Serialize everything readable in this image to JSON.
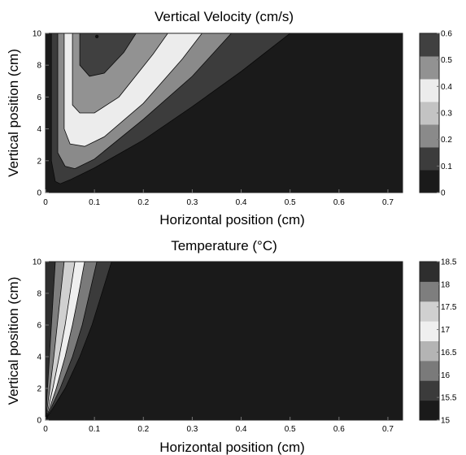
{
  "chart_data": [
    {
      "type": "heatmap",
      "title": "Vertical Velocity (cm/s)",
      "xlabel": "Horizontal position (cm)",
      "ylabel": "Vertical position (cm)",
      "xlim": [
        0,
        0.73
      ],
      "ylim": [
        0,
        10
      ],
      "xticks": [
        "0",
        "0.1",
        "0.2",
        "0.3",
        "0.4",
        "0.5",
        "0.6",
        "0.7"
      ],
      "yticks": [
        "0",
        "2",
        "4",
        "6",
        "8",
        "10"
      ],
      "colorbar": {
        "min": 0,
        "max": 0.6,
        "ticks": [
          "0",
          "0.1",
          "0.2",
          "0.3",
          "0.4",
          "0.5",
          "0.6"
        ]
      },
      "colormap": [
        "#1a1a1a",
        "#3c3c3c",
        "#8a8a8a",
        "#c3c3c3",
        "#ececec",
        "#929292",
        "#404040"
      ],
      "contour_levels": [
        0.1,
        0.2,
        0.3,
        0.4,
        0.5
      ],
      "contours": [
        {
          "level": 0.1,
          "value": 0.15,
          "points": [
            [
              0.012,
              10
            ],
            [
              0.012,
              2
            ],
            [
              0.02,
              0.7
            ],
            [
              0.03,
              0.55
            ],
            [
              0.05,
              0.8
            ],
            [
              0.1,
              1.55
            ],
            [
              0.2,
              3.3
            ],
            [
              0.3,
              5.4
            ],
            [
              0.4,
              7.6
            ],
            [
              0.45,
              8.8
            ],
            [
              0.5,
              10
            ]
          ]
        },
        {
          "level": 0.2,
          "value": 0.25,
          "points": [
            [
              0.025,
              10
            ],
            [
              0.025,
              2.5
            ],
            [
              0.04,
              1.65
            ],
            [
              0.06,
              1.5
            ],
            [
              0.1,
              2.1
            ],
            [
              0.2,
              4.6
            ],
            [
              0.3,
              7.3
            ],
            [
              0.38,
              10
            ]
          ]
        },
        {
          "level": 0.3,
          "value": 0.35,
          "points": [
            [
              0.038,
              10
            ],
            [
              0.038,
              4
            ],
            [
              0.05,
              3.05
            ],
            [
              0.08,
              2.9
            ],
            [
              0.12,
              3.5
            ],
            [
              0.2,
              5.6
            ],
            [
              0.28,
              8.4
            ],
            [
              0.32,
              10
            ]
          ]
        },
        {
          "level": 0.4,
          "value": 0.45,
          "points": [
            [
              0.055,
              10
            ],
            [
              0.055,
              5.5
            ],
            [
              0.07,
              5.0
            ],
            [
              0.1,
              5.0
            ],
            [
              0.15,
              6.0
            ],
            [
              0.22,
              8.7
            ],
            [
              0.25,
              10
            ]
          ]
        },
        {
          "level": 0.5,
          "value": 0.55,
          "points": [
            [
              0.07,
              10
            ],
            [
              0.07,
              8.0
            ],
            [
              0.09,
              7.3
            ],
            [
              0.12,
              7.5
            ],
            [
              0.16,
              8.8
            ],
            [
              0.185,
              10
            ]
          ]
        }
      ],
      "peak_marker": {
        "x": 0.105,
        "y": 9.8
      }
    },
    {
      "type": "heatmap",
      "title": "Temperature (°C)",
      "xlabel": "Horizontal position (cm)",
      "ylabel": "Vertical position (cm)",
      "xlim": [
        0,
        0.73
      ],
      "ylim": [
        0,
        10
      ],
      "xticks": [
        "0",
        "0.1",
        "0.2",
        "0.3",
        "0.4",
        "0.5",
        "0.6",
        "0.7"
      ],
      "yticks": [
        "0",
        "2",
        "4",
        "6",
        "8",
        "10"
      ],
      "colorbar": {
        "min": 15,
        "max": 18.5,
        "ticks": [
          "15",
          "15.5",
          "16",
          "16.5",
          "17",
          "17.5",
          "18",
          "18.5"
        ]
      },
      "colormap": [
        "#1a1a1a",
        "#3b3b3b",
        "#7a7a7a",
        "#b4b4b4",
        "#efefef",
        "#d0d0d0",
        "#7e7e7e",
        "#2e2e2e"
      ],
      "contour_levels": [
        15.5,
        16,
        16.5,
        17,
        17.5,
        18
      ],
      "contours": [
        {
          "level": 15.5,
          "value": 15.75,
          "points": [
            [
              0,
              0
            ],
            [
              0.04,
              2
            ],
            [
              0.07,
              4
            ],
            [
              0.095,
              6
            ],
            [
              0.115,
              8
            ],
            [
              0.135,
              10
            ]
          ]
        },
        {
          "level": 16.0,
          "value": 16.25,
          "points": [
            [
              0,
              0
            ],
            [
              0.03,
              2
            ],
            [
              0.055,
              4
            ],
            [
              0.075,
              6
            ],
            [
              0.09,
              8
            ],
            [
              0.105,
              10
            ]
          ]
        },
        {
          "level": 16.5,
          "value": 16.75,
          "points": [
            [
              0,
              0
            ],
            [
              0.022,
              2
            ],
            [
              0.04,
              4
            ],
            [
              0.055,
              6
            ],
            [
              0.068,
              8
            ],
            [
              0.08,
              10
            ]
          ]
        },
        {
          "level": 17.0,
          "value": 17.25,
          "points": [
            [
              0,
              0
            ],
            [
              0.015,
              2
            ],
            [
              0.028,
              4
            ],
            [
              0.04,
              6
            ],
            [
              0.05,
              8
            ],
            [
              0.06,
              10
            ]
          ]
        },
        {
          "level": 17.5,
          "value": 17.75,
          "points": [
            [
              0,
              0
            ],
            [
              0.009,
              2
            ],
            [
              0.017,
              4
            ],
            [
              0.024,
              6
            ],
            [
              0.031,
              8
            ],
            [
              0.038,
              10
            ]
          ]
        },
        {
          "level": 18.0,
          "value": 18.25,
          "points": [
            [
              0,
              0
            ],
            [
              0.004,
              2
            ],
            [
              0.008,
              4
            ],
            [
              0.012,
              6
            ],
            [
              0.016,
              8
            ],
            [
              0.02,
              10
            ]
          ]
        }
      ]
    }
  ]
}
